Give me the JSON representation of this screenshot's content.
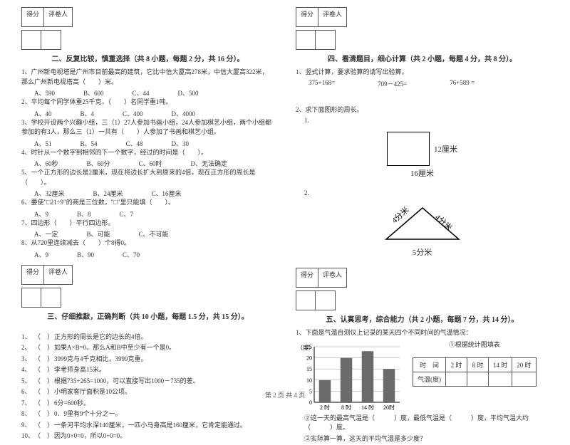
{
  "scorebox": {
    "label1": "得分",
    "label2": "评卷人"
  },
  "section2": {
    "title": "二、反复比较，慎重选择（共 8 小题，每题 2 分，共 16 分）。",
    "q1": "1、广州新电视塔是广州市目前最高的建筑，它比中信大厦高278米，中信大厦高322米，那么广州新电视塔高（　　）米。",
    "q1opts": [
      "A、590",
      "B、600",
      "C、44",
      "D、500"
    ],
    "q2": "2、平均每个同学体重25千克，（　　）名同学重1吨。",
    "q2opts": [
      "A、40",
      "B、4",
      "C、400",
      "D、4000"
    ],
    "q3": "3、学校开设两个兴趣小组，三（1）27人参加书画小组，24人参加棋艺小组，两个小组都参加的有3人，那么三（1）一共有（　　）人参加了书画和棋艺小组。",
    "q3opts": [
      "A、51",
      "B、54",
      "C、48",
      "D、30"
    ],
    "q4": "4、时针从一个数字到相邻的下一个数字，经过的时间是（　　）。",
    "q4opts": [
      "A、60秒",
      "B、60分",
      "C、60时",
      "D、无法确定"
    ],
    "q5": "5、一个正方形的边长是2厘米，现在将边长扩大到原来的4倍，现在正方形的周长是（　　）。",
    "q5opts": [
      "A、32厘米",
      "B、24厘米",
      "C、16厘米"
    ],
    "q6": "6、要使\"□21÷9\"的商是三位数，\"□\"里只能填（　　）。",
    "q6opts": [
      "A、9",
      "B、8",
      "C、7"
    ],
    "q7": "7、四边形（　　）平行四边形。",
    "q7opts": [
      "A、一定",
      "B、可能",
      "C、不可能"
    ],
    "q8": "8、从720里连续减去（　　）个8得0。",
    "q8opts": [
      "A、9",
      "B、90",
      "C、70"
    ]
  },
  "section3": {
    "title": "三、仔细推敲，正确判断（共 10 小题，每题 1.5 分，共 15 分）。",
    "items": [
      "正方形的周长是它的边长的4倍。",
      "如果A×B=0，那么A和B中至少有一个是0。",
      "3999克与4千克相比，3999克重。",
      "李老师身高15米。",
      "根据735+265=1000，可以直接写出1000－735的差。",
      "小明家客厅面积是10公顷。",
      "6分=600秒。",
      "0．9里有9个十分之一。",
      "一条河平均水深140厘米，一匹小马身高是160厘米，它肯定能通过。",
      "因为0×0=0，所以0÷0=0。"
    ]
  },
  "section4": {
    "title": "四、看清题目，细心计算（共 2 小题，每题 4 分，共 8 分）。",
    "q1": "1、竖式计算，要求验算的请写出验算。",
    "calcs": [
      "375+168=",
      "709－425=",
      "76+589 ="
    ],
    "q2": "2、求下面图形的周长。",
    "sub1": "1.",
    "sub2": "2.",
    "square": {
      "right": "12厘米",
      "bottom": "16厘米"
    },
    "triangle": {
      "left": "4分米",
      "right": "4分米",
      "bottom": "5分米"
    }
  },
  "section5": {
    "title": "五、认真思考，综合能力（共 2 小题，每题 7 分，共 14 分）。",
    "q1": "1、下面是气温自测仪上记录的某天四个不同时间的气温情况：",
    "chart": {
      "type": "bar",
      "title": "①根据统计图填表",
      "ylabel": "（度）",
      "ylim": [
        0,
        25
      ],
      "ytick_step": 5,
      "categories": [
        "2 时",
        "8 时",
        "14 时",
        "20时"
      ],
      "values": [
        10,
        20,
        23,
        15
      ],
      "bar_color": "#6b6b6b",
      "grid_color": "#999999",
      "background_color": "#ffffff",
      "label_fontsize": 8
    },
    "table": {
      "headers": [
        "时　间",
        "2 时",
        "8 时",
        "14 时",
        "20 时"
      ],
      "row_label": "气温(度)"
    },
    "q2_line2": "②这一天的最高气温是（　　　）度，最低气温是（　　　）度，平均气温大约（　　　）度。",
    "q2_line3": "③实际算一算，这天的平均气温是多少度？"
  },
  "footer": "第 2 页 共 4 页"
}
